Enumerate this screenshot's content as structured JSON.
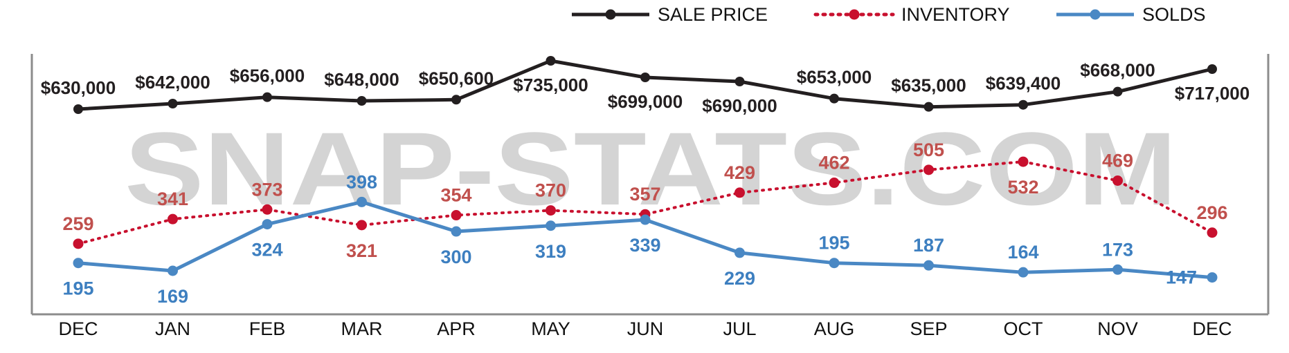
{
  "watermark": "SNAP-STATS.COM",
  "chart_data": {
    "type": "line",
    "categories": [
      "DEC",
      "JAN",
      "FEB",
      "MAR",
      "APR",
      "MAY",
      "JUN",
      "JUL",
      "AUG",
      "SEP",
      "OCT",
      "NOV",
      "DEC"
    ],
    "legend_position": "top-right",
    "grid": false,
    "series": [
      {
        "name": "SALE PRICE",
        "color": "#231f20",
        "style": "solid",
        "values": [
          630000,
          642000,
          656000,
          648000,
          650600,
          735000,
          699000,
          690000,
          653000,
          635000,
          639400,
          668000,
          717000
        ],
        "labels": [
          "$630,000",
          "$642,000",
          "$656,000",
          "$648,000",
          "$650,600",
          "$735,000",
          "$699,000",
          "$690,000",
          "$653,000",
          "$635,000",
          "$639,400",
          "$668,000",
          "$717,000"
        ]
      },
      {
        "name": "INVENTORY",
        "color": "#c8102e",
        "label_color": "#c0504d",
        "style": "dotted",
        "values": [
          259,
          341,
          373,
          321,
          354,
          370,
          357,
          429,
          462,
          505,
          532,
          469,
          296
        ],
        "labels": [
          "259",
          "341",
          "373",
          "321",
          "354",
          "370",
          "357",
          "429",
          "462",
          "505",
          "532",
          "469",
          "296"
        ]
      },
      {
        "name": "SOLDS",
        "color": "#4a88c4",
        "label_color": "#3d7fc0",
        "style": "solid",
        "values": [
          195,
          169,
          324,
          398,
          300,
          319,
          339,
          229,
          195,
          187,
          164,
          173,
          147
        ],
        "labels": [
          "195",
          "169",
          "324",
          "398",
          "300",
          "319",
          "339",
          "229",
          "195",
          "187",
          "164",
          "173",
          "147"
        ]
      }
    ]
  }
}
